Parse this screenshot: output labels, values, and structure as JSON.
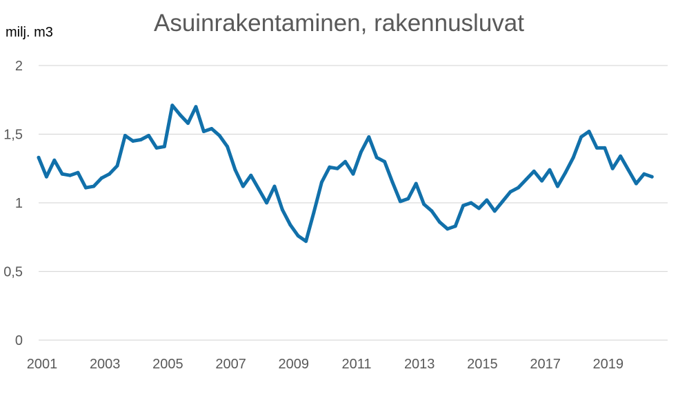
{
  "chart_data": {
    "type": "line",
    "title": "Asuinrakentaminen, rakennusluvat",
    "ylabel": "milj. m3",
    "xlabel": "",
    "ylim": [
      0,
      2
    ],
    "y_ticks": [
      "0",
      "0,5",
      "1",
      "1,5",
      "2"
    ],
    "x_ticks": [
      "2001",
      "2003",
      "2005",
      "2007",
      "2009",
      "2011",
      "2013",
      "2015",
      "2017",
      "2019"
    ],
    "grid": true,
    "line_color": "#1170AA",
    "x_start": 2001.0,
    "x_step": 0.25,
    "values": [
      1.33,
      1.19,
      1.31,
      1.21,
      1.2,
      1.22,
      1.11,
      1.12,
      1.18,
      1.21,
      1.27,
      1.49,
      1.45,
      1.46,
      1.49,
      1.4,
      1.41,
      1.71,
      1.64,
      1.58,
      1.7,
      1.52,
      1.54,
      1.49,
      1.41,
      1.24,
      1.12,
      1.2,
      1.1,
      1.0,
      1.12,
      0.95,
      0.84,
      0.76,
      0.72,
      0.93,
      1.15,
      1.26,
      1.25,
      1.3,
      1.21,
      1.37,
      1.48,
      1.33,
      1.3,
      1.15,
      1.01,
      1.03,
      1.14,
      0.99,
      0.94,
      0.86,
      0.81,
      0.83,
      0.98,
      1.0,
      0.96,
      1.02,
      0.94,
      1.01,
      1.08,
      1.11,
      1.17,
      1.23,
      1.16,
      1.24,
      1.12,
      1.22,
      1.33,
      1.48,
      1.52,
      1.4,
      1.4,
      1.25,
      1.34,
      1.24,
      1.14,
      1.21,
      1.19
    ]
  }
}
